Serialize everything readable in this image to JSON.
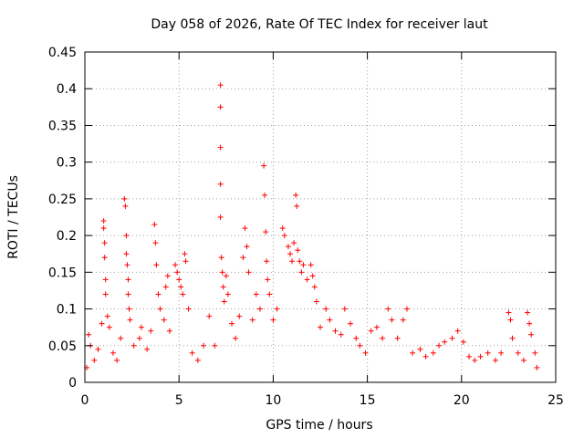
{
  "chart_data": {
    "type": "scatter",
    "title": "Day 058 of 2026, Rate Of TEC Index for receiver laut",
    "xlabel": "GPS time / hours",
    "ylabel": "ROTI / TECUs",
    "xlim": [
      0,
      25
    ],
    "ylim": [
      0,
      0.45
    ],
    "xticks": [
      0,
      5,
      10,
      15,
      20,
      25
    ],
    "xtick_labels": [
      "0",
      "5",
      "10",
      "15",
      "20",
      "25"
    ],
    "yticks": [
      0,
      0.05,
      0.1,
      0.15,
      0.2,
      0.25,
      0.3,
      0.35,
      0.4,
      0.45
    ],
    "ytick_labels": [
      "0",
      "0.05",
      "0.1",
      "0.15",
      "0.2",
      "0.25",
      "0.3",
      "0.35",
      "0.4",
      "0.45"
    ],
    "grid": true,
    "marker": "plus",
    "marker_color": "#ff0000",
    "series": [
      {
        "points": [
          [
            0.1,
            0.02
          ],
          [
            0.2,
            0.065
          ],
          [
            0.3,
            0.05
          ],
          [
            0.5,
            0.03
          ],
          [
            0.7,
            0.045
          ],
          [
            0.9,
            0.08
          ],
          [
            1.0,
            0.22
          ],
          [
            1.0,
            0.21
          ],
          [
            1.05,
            0.19
          ],
          [
            1.05,
            0.17
          ],
          [
            1.1,
            0.14
          ],
          [
            1.1,
            0.12
          ],
          [
            1.2,
            0.09
          ],
          [
            1.3,
            0.075
          ],
          [
            1.5,
            0.04
          ],
          [
            1.7,
            0.03
          ],
          [
            1.9,
            0.06
          ],
          [
            2.1,
            0.25
          ],
          [
            2.15,
            0.24
          ],
          [
            2.2,
            0.2
          ],
          [
            2.2,
            0.175
          ],
          [
            2.25,
            0.16
          ],
          [
            2.3,
            0.14
          ],
          [
            2.3,
            0.12
          ],
          [
            2.35,
            0.1
          ],
          [
            2.4,
            0.085
          ],
          [
            2.6,
            0.05
          ],
          [
            2.9,
            0.06
          ],
          [
            3.0,
            0.075
          ],
          [
            3.3,
            0.045
          ],
          [
            3.5,
            0.07
          ],
          [
            3.7,
            0.215
          ],
          [
            3.75,
            0.19
          ],
          [
            3.8,
            0.16
          ],
          [
            3.9,
            0.12
          ],
          [
            4.0,
            0.1
          ],
          [
            4.2,
            0.085
          ],
          [
            4.3,
            0.13
          ],
          [
            4.4,
            0.145
          ],
          [
            4.5,
            0.07
          ],
          [
            4.8,
            0.16
          ],
          [
            4.9,
            0.15
          ],
          [
            5.0,
            0.14
          ],
          [
            5.1,
            0.13
          ],
          [
            5.2,
            0.12
          ],
          [
            5.3,
            0.175
          ],
          [
            5.35,
            0.165
          ],
          [
            5.5,
            0.1
          ],
          [
            5.7,
            0.04
          ],
          [
            6.0,
            0.03
          ],
          [
            6.3,
            0.05
          ],
          [
            6.6,
            0.09
          ],
          [
            6.9,
            0.05
          ],
          [
            7.2,
            0.405
          ],
          [
            7.2,
            0.375
          ],
          [
            7.2,
            0.32
          ],
          [
            7.2,
            0.27
          ],
          [
            7.2,
            0.225
          ],
          [
            7.25,
            0.17
          ],
          [
            7.3,
            0.15
          ],
          [
            7.35,
            0.13
          ],
          [
            7.4,
            0.11
          ],
          [
            7.5,
            0.145
          ],
          [
            7.6,
            0.12
          ],
          [
            7.8,
            0.08
          ],
          [
            8.0,
            0.06
          ],
          [
            8.2,
            0.09
          ],
          [
            8.4,
            0.17
          ],
          [
            8.5,
            0.21
          ],
          [
            8.6,
            0.185
          ],
          [
            8.7,
            0.15
          ],
          [
            8.9,
            0.085
          ],
          [
            9.1,
            0.12
          ],
          [
            9.3,
            0.1
          ],
          [
            9.5,
            0.295
          ],
          [
            9.55,
            0.255
          ],
          [
            9.6,
            0.205
          ],
          [
            9.65,
            0.165
          ],
          [
            9.7,
            0.14
          ],
          [
            9.8,
            0.12
          ],
          [
            10.0,
            0.085
          ],
          [
            10.2,
            0.1
          ],
          [
            10.5,
            0.21
          ],
          [
            10.6,
            0.2
          ],
          [
            10.8,
            0.185
          ],
          [
            10.9,
            0.175
          ],
          [
            11.0,
            0.165
          ],
          [
            11.1,
            0.19
          ],
          [
            11.2,
            0.255
          ],
          [
            11.25,
            0.24
          ],
          [
            11.3,
            0.18
          ],
          [
            11.4,
            0.165
          ],
          [
            11.5,
            0.15
          ],
          [
            11.6,
            0.16
          ],
          [
            11.8,
            0.14
          ],
          [
            12.0,
            0.16
          ],
          [
            12.1,
            0.145
          ],
          [
            12.2,
            0.13
          ],
          [
            12.3,
            0.11
          ],
          [
            12.5,
            0.075
          ],
          [
            12.8,
            0.1
          ],
          [
            13.0,
            0.085
          ],
          [
            13.3,
            0.07
          ],
          [
            13.6,
            0.065
          ],
          [
            13.8,
            0.1
          ],
          [
            14.1,
            0.08
          ],
          [
            14.4,
            0.06
          ],
          [
            14.6,
            0.05
          ],
          [
            14.9,
            0.04
          ],
          [
            15.2,
            0.07
          ],
          [
            15.5,
            0.075
          ],
          [
            15.8,
            0.06
          ],
          [
            16.1,
            0.1
          ],
          [
            16.3,
            0.085
          ],
          [
            16.6,
            0.06
          ],
          [
            16.9,
            0.085
          ],
          [
            17.1,
            0.1
          ],
          [
            17.4,
            0.04
          ],
          [
            17.8,
            0.045
          ],
          [
            18.1,
            0.035
          ],
          [
            18.5,
            0.04
          ],
          [
            18.8,
            0.05
          ],
          [
            19.1,
            0.055
          ],
          [
            19.5,
            0.06
          ],
          [
            19.8,
            0.07
          ],
          [
            20.1,
            0.055
          ],
          [
            20.4,
            0.035
          ],
          [
            20.7,
            0.03
          ],
          [
            21.0,
            0.035
          ],
          [
            21.4,
            0.04
          ],
          [
            21.8,
            0.03
          ],
          [
            22.1,
            0.04
          ],
          [
            22.5,
            0.095
          ],
          [
            22.6,
            0.085
          ],
          [
            22.7,
            0.06
          ],
          [
            23.0,
            0.04
          ],
          [
            23.3,
            0.03
          ],
          [
            23.5,
            0.095
          ],
          [
            23.6,
            0.08
          ],
          [
            23.7,
            0.065
          ],
          [
            23.9,
            0.04
          ],
          [
            24.0,
            0.02
          ]
        ]
      }
    ]
  }
}
